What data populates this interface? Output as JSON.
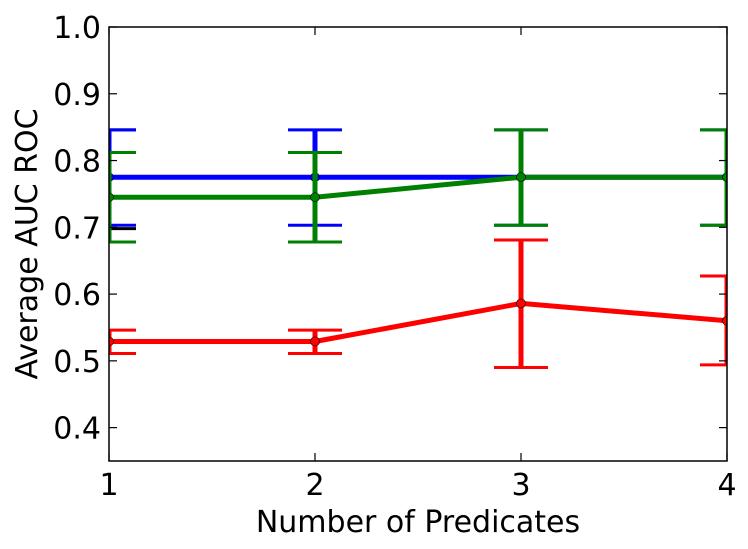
{
  "chart_data": {
    "type": "line",
    "title": "",
    "xlabel": "Number of Predicates",
    "ylabel": "Average AUC ROC",
    "xlim": [
      1,
      4
    ],
    "ylim": [
      0.35,
      1.0
    ],
    "x": [
      1,
      2,
      3,
      4
    ],
    "xticks": [
      "1",
      "2",
      "3",
      "4"
    ],
    "yticks": [
      "0.4",
      "0.5",
      "0.6",
      "0.7",
      "0.8",
      "0.9",
      "1.0"
    ],
    "grid": false,
    "legend": "none",
    "series": [
      {
        "color": "#0000ff",
        "values": [
          0.775,
          0.775,
          0.775,
          0.775
        ],
        "err_low": [
          0.703,
          0.703,
          0.703,
          0.703
        ],
        "err_high": [
          0.846,
          0.846,
          0.846,
          0.846
        ]
      },
      {
        "color": "#008000",
        "values": [
          0.745,
          0.745,
          0.775,
          0.775
        ],
        "err_low": [
          0.678,
          0.678,
          0.703,
          0.703
        ],
        "err_high": [
          0.812,
          0.812,
          0.846,
          0.846
        ]
      },
      {
        "color": "#ff0000",
        "values": [
          0.529,
          0.529,
          0.586,
          0.56
        ],
        "err_low": [
          0.511,
          0.511,
          0.49,
          0.494
        ],
        "err_high": [
          0.546,
          0.546,
          0.681,
          0.627
        ]
      }
    ],
    "extra_marks": [
      {
        "color": "#000000",
        "x": 1,
        "low": 0.698,
        "high": 0.846
      }
    ]
  }
}
